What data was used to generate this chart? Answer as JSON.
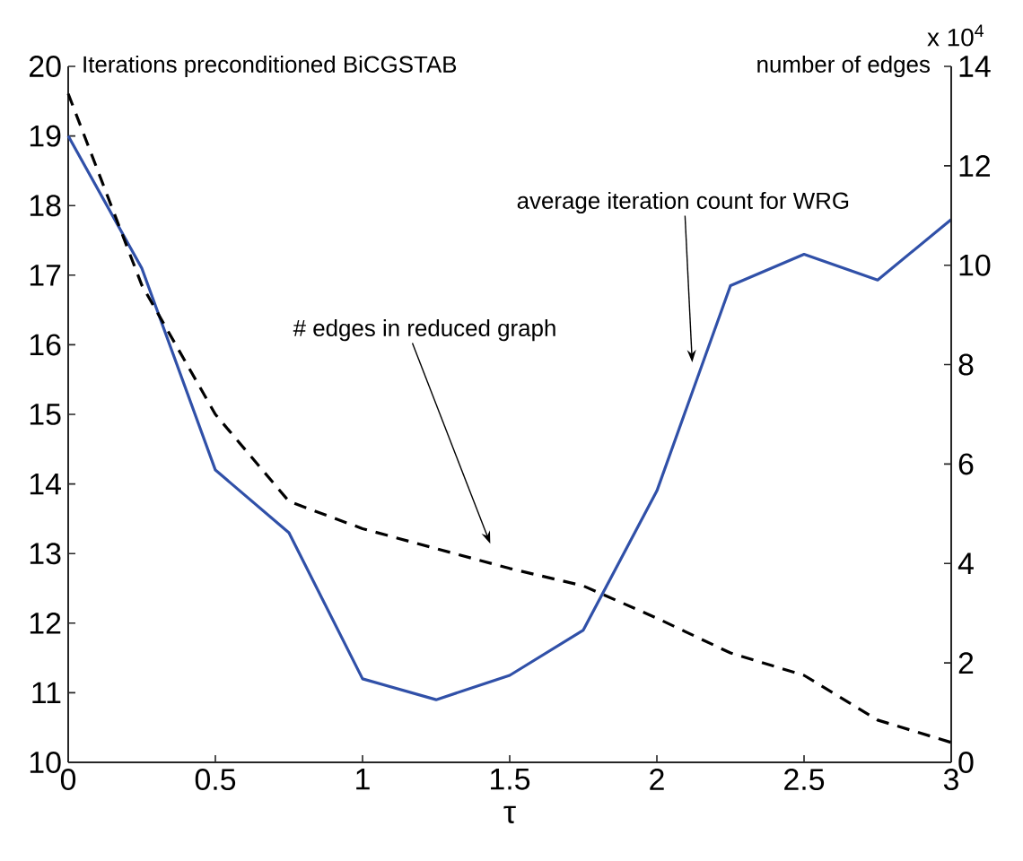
{
  "chart_data": {
    "type": "line",
    "xlabel": "τ",
    "ylabel": "Iterations preconditioned BiCGSTAB",
    "y2label": "number of edges",
    "x": [
      0,
      0.25,
      0.5,
      0.75,
      1,
      1.25,
      1.5,
      1.75,
      2,
      2.25,
      2.5,
      2.75,
      3
    ],
    "xlim": [
      0,
      3
    ],
    "xticks": [
      0,
      0.5,
      1,
      1.5,
      2,
      2.5,
      3
    ],
    "ylim": [
      10,
      20
    ],
    "yticks": [
      10,
      11,
      12,
      13,
      14,
      15,
      16,
      17,
      18,
      19,
      20
    ],
    "y2lim": [
      0,
      14
    ],
    "y2ticks": [
      0,
      2,
      4,
      6,
      8,
      10,
      12,
      14
    ],
    "series": [
      {
        "color": "#3050a8",
        "values": [
          19,
          17.1,
          14.2,
          13.3,
          11.2,
          10.9,
          11.25,
          11.9,
          13.9,
          16.85,
          17.3,
          16.93,
          17.8
        ]
      },
      {
        "color": "#000000",
        "axis": "y2",
        "line_style": "dashed",
        "values": [
          13.45,
          9.6,
          7.0,
          5.25,
          4.7,
          4.3,
          3.9,
          3.55,
          2.9,
          2.2,
          1.75,
          0.85,
          0.4
        ]
      }
    ],
    "annotations": [
      {
        "text": "average iteration count for WRG",
        "x": 2.12,
        "y": 15.67
      },
      "# edges in reduced graph",
      "x 10$^{4}$"
    ]
  }
}
